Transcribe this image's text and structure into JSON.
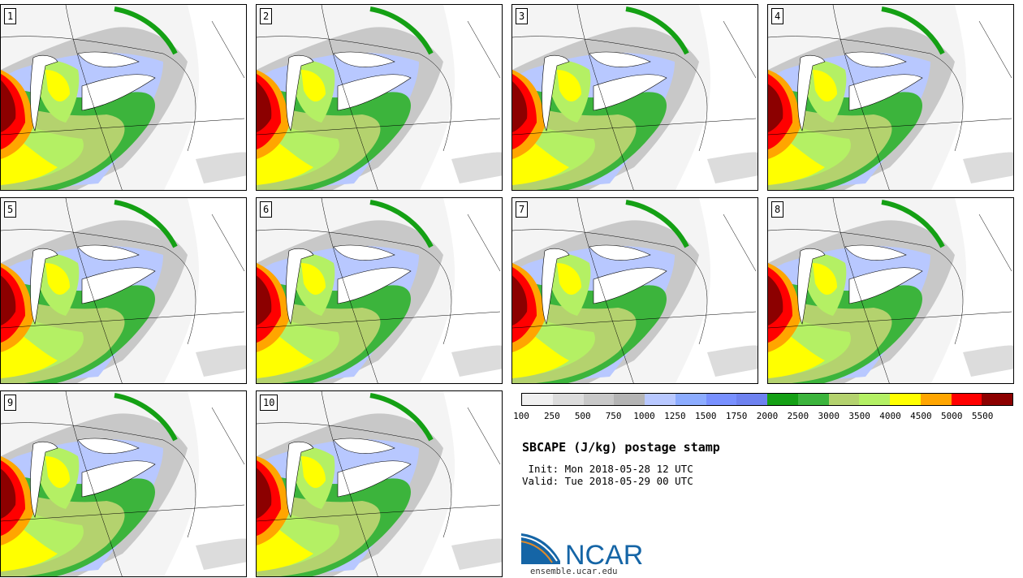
{
  "members": [
    "1",
    "2",
    "3",
    "4",
    "5",
    "6",
    "7",
    "8",
    "9",
    "10"
  ],
  "colorbar": {
    "colors": [
      "#f0f0f0",
      "#dcdcdc",
      "#c8c8c8",
      "#b4b4b4",
      "#b8c8ff",
      "#8cacff",
      "#7890ff",
      "#6e82f0",
      "#14a014",
      "#3cb43c",
      "#b4d26e",
      "#b4f064",
      "#ffff00",
      "#ffa500",
      "#ff0000",
      "#8c0000"
    ],
    "labels": [
      "100",
      "250",
      "500",
      "750",
      "1000",
      "1250",
      "1500",
      "1750",
      "2000",
      "2500",
      "3000",
      "3500",
      "4000",
      "4500",
      "5000",
      "5500"
    ]
  },
  "title": "SBCAPE (J/kg) postage stamp",
  "init_line": " Init: Mon 2018-05-28 12 UTC",
  "valid_line": "Valid: Tue 2018-05-29 00 UTC",
  "logo": {
    "text": "NCAR",
    "url": "ensemble.ucar.edu",
    "color": "#1565a6"
  }
}
